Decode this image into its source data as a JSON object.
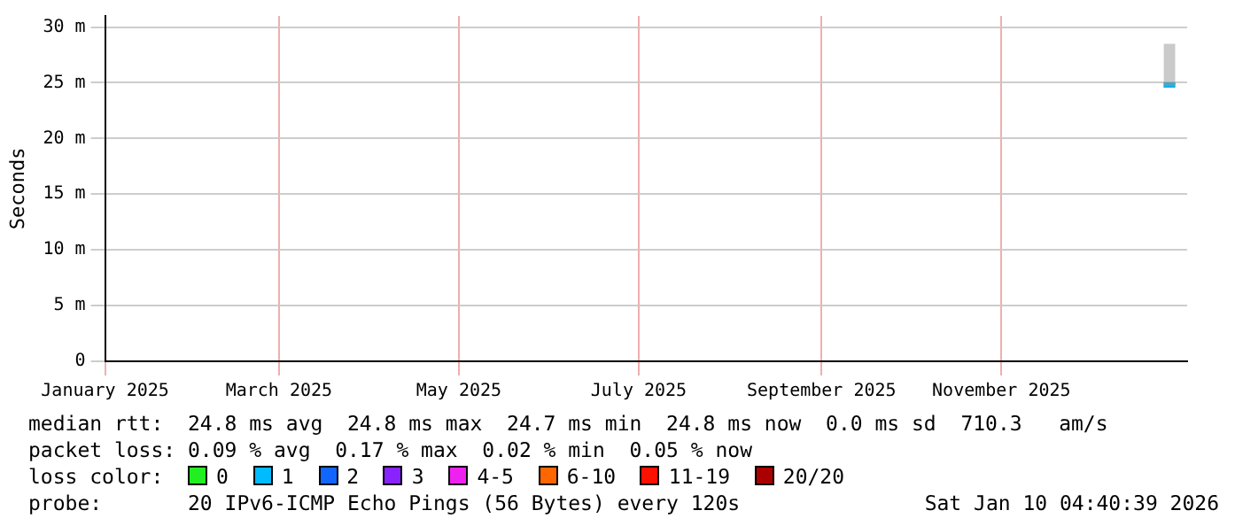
{
  "chart_data": {
    "type": "line",
    "ylabel": "Seconds",
    "x": [
      "2025-12-26",
      "2025-12-28",
      "2025-12-30"
    ],
    "series": [
      {
        "color": "#00b4f0",
        "values": [
          24.8,
          24.8,
          24.8
        ],
        "lower": [
          24.7,
          24.7,
          24.7
        ],
        "upper": [
          28.5,
          28.5,
          28.5
        ]
      }
    ],
    "xlim": [
      "2025-01-01",
      "2026-01-03"
    ],
    "xticks": [
      {
        "value": "2025-01-01",
        "label": "January 2025"
      },
      {
        "value": "2025-03-01",
        "label": "March 2025"
      },
      {
        "value": "2025-05-01",
        "label": "May 2025"
      },
      {
        "value": "2025-07-01",
        "label": "July 2025"
      },
      {
        "value": "2025-09-01",
        "label": "September 2025"
      },
      {
        "value": "2025-11-01",
        "label": "November 2025"
      }
    ],
    "ylim": [
      0,
      31
    ],
    "yticks": [
      0,
      {
        "value": 5,
        "label": "5 m"
      },
      {
        "value": 10,
        "label": "10 m"
      },
      {
        "value": 15,
        "label": "15 m"
      },
      {
        "value": 20,
        "label": "20 m"
      },
      {
        "value": 25,
        "label": "25 m"
      },
      {
        "value": 30,
        "label": "30 m"
      }
    ],
    "grid": true,
    "legend": false,
    "marker": "none",
    "line_style": "solid",
    "annotations": [
      "median rtt:  24.8 ms avg  24.8 ms max  24.7 ms min  24.8 ms now  0.0 ms sd  710.3   am/s",
      "packet loss: 0.09 % avg  0.17 % max  0.02 % min  0.05 % now",
      "loss color:",
      "0",
      "1",
      "2",
      "3",
      "4-5",
      "6-10",
      "11-19",
      "20/20",
      "probe:       20 IPv6-ICMP Echo Pings (56 Bytes) every 120s",
      "Sat Jan 10 04:40:39 2026"
    ]
  }
}
